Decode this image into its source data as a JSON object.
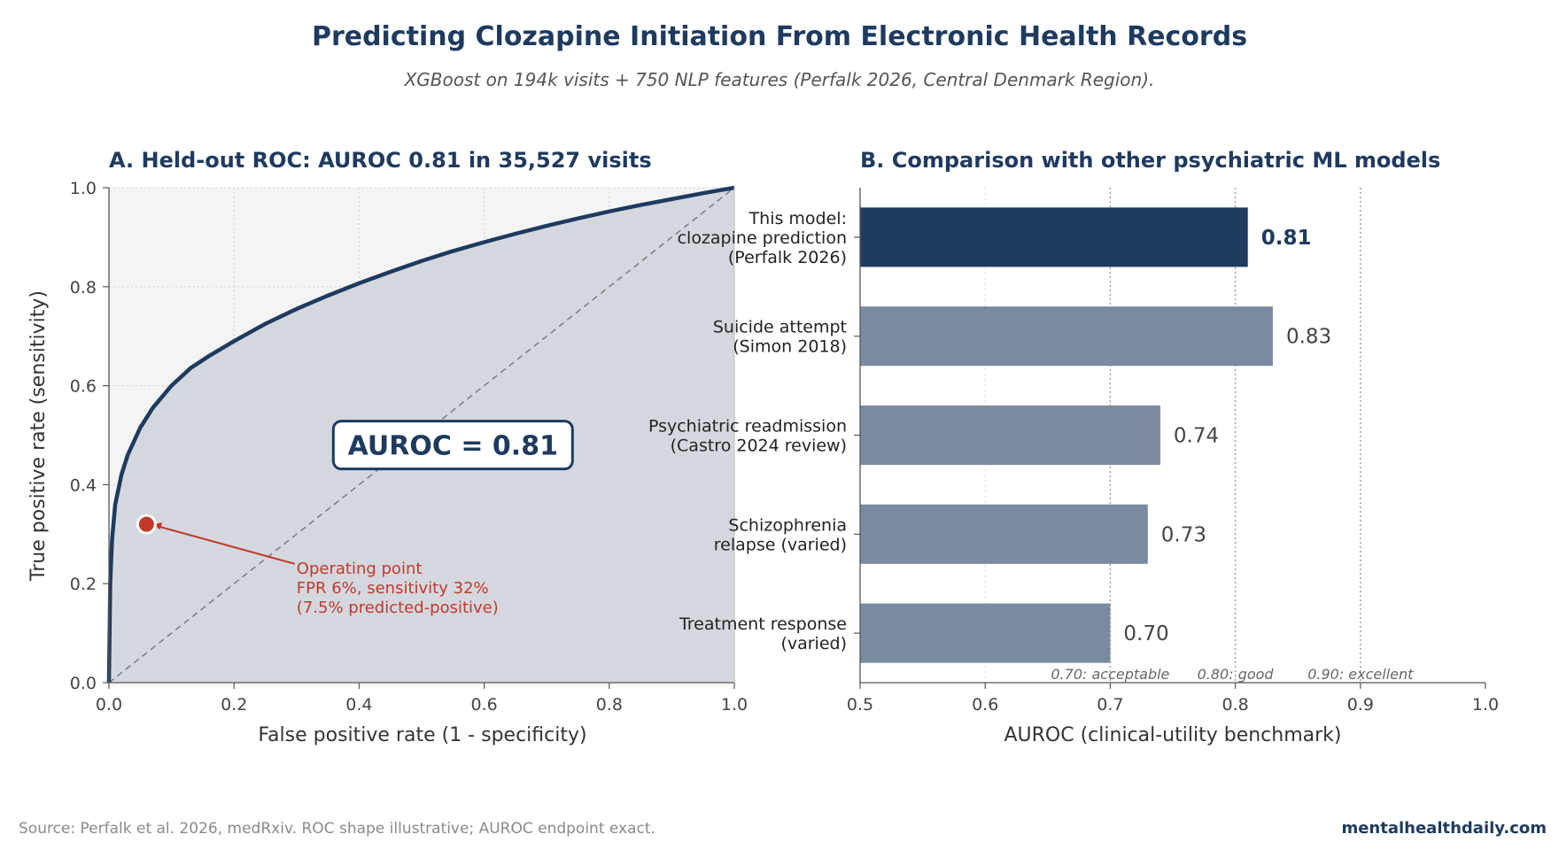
{
  "header": {
    "title": "Predicting Clozapine Initiation From Electronic Health Records",
    "subtitle": "XGBoost on 194k visits + 750 NLP features (Perfalk 2026, Central Denmark Region)."
  },
  "footer": {
    "source": "Source: Perfalk et al. 2026, medRxiv. ROC shape illustrative; AUROC endpoint exact.",
    "brand": "mentalhealthdaily.com"
  },
  "colors": {
    "navy": "#1e3a5f",
    "slate": "#7a8aa0",
    "red": "#c0392b",
    "area_fill": "#d4d8de",
    "plot_bg": "#f4f4f5",
    "diagonal": "#808080"
  },
  "chart_data": [
    {
      "type": "line",
      "title": "A. Held-out ROC: AUROC 0.81 in 35,527 visits",
      "xlabel": "False positive rate (1 - specificity)",
      "ylabel": "True positive rate (sensitivity)",
      "xlim": [
        0,
        1
      ],
      "ylim": [
        0,
        1
      ],
      "xticks": [
        "0.0",
        "0.2",
        "0.4",
        "0.6",
        "0.8",
        "1.0"
      ],
      "yticks": [
        "0.0",
        "0.2",
        "0.4",
        "0.6",
        "0.8",
        "1.0"
      ],
      "grid": true,
      "series": [
        {
          "x": [
            0.0,
            0.002,
            0.005,
            0.01,
            0.02,
            0.03,
            0.05,
            0.07,
            0.1,
            0.13,
            0.16,
            0.2,
            0.25,
            0.3,
            0.35,
            0.4,
            0.45,
            0.5,
            0.55,
            0.6,
            0.65,
            0.7,
            0.75,
            0.8,
            0.85,
            0.9,
            0.95,
            1.0
          ],
          "y": [
            0.0,
            0.2,
            0.29,
            0.36,
            0.42,
            0.46,
            0.515,
            0.555,
            0.6,
            0.635,
            0.66,
            0.69,
            0.725,
            0.755,
            0.782,
            0.807,
            0.83,
            0.852,
            0.872,
            0.89,
            0.907,
            0.923,
            0.938,
            0.952,
            0.965,
            0.977,
            0.989,
            1.0
          ]
        }
      ],
      "reference_line": {
        "x": [
          0,
          1
        ],
        "y": [
          0,
          1
        ]
      },
      "operating_point": {
        "x": 0.06,
        "y": 0.32
      },
      "annotations": {
        "auroc_box": "AUROC = 0.81",
        "operating_point_lines": [
          "Operating point",
          "FPR 6%, sensitivity 32%",
          "(7.5% predicted-positive)"
        ]
      }
    },
    {
      "type": "bar",
      "orientation": "horizontal",
      "title": "B. Comparison with other psychiatric ML models",
      "xlabel": "AUROC (clinical-utility benchmark)",
      "xlim": [
        0.5,
        1.0
      ],
      "xticks": [
        "0.5",
        "0.6",
        "0.7",
        "0.8",
        "0.9",
        "1.0"
      ],
      "categories": [
        [
          "This model:",
          "clozapine prediction",
          "(Perfalk 2026)"
        ],
        [
          "Suicide attempt",
          "(Simon 2018)"
        ],
        [
          "Psychiatric readmission",
          "(Castro 2024 review)"
        ],
        [
          "Schizophrenia",
          "relapse (varied)"
        ],
        [
          "Treatment response",
          "(varied)"
        ]
      ],
      "values": [
        0.81,
        0.83,
        0.74,
        0.73,
        0.7
      ],
      "value_labels": [
        "0.81",
        "0.83",
        "0.74",
        "0.73",
        "0.70"
      ],
      "highlight_index": 0,
      "thresholds": [
        {
          "value": 0.7,
          "label": "0.70: acceptable"
        },
        {
          "value": 0.8,
          "label": "0.80: good"
        },
        {
          "value": 0.9,
          "label": "0.90: excellent"
        }
      ]
    }
  ]
}
